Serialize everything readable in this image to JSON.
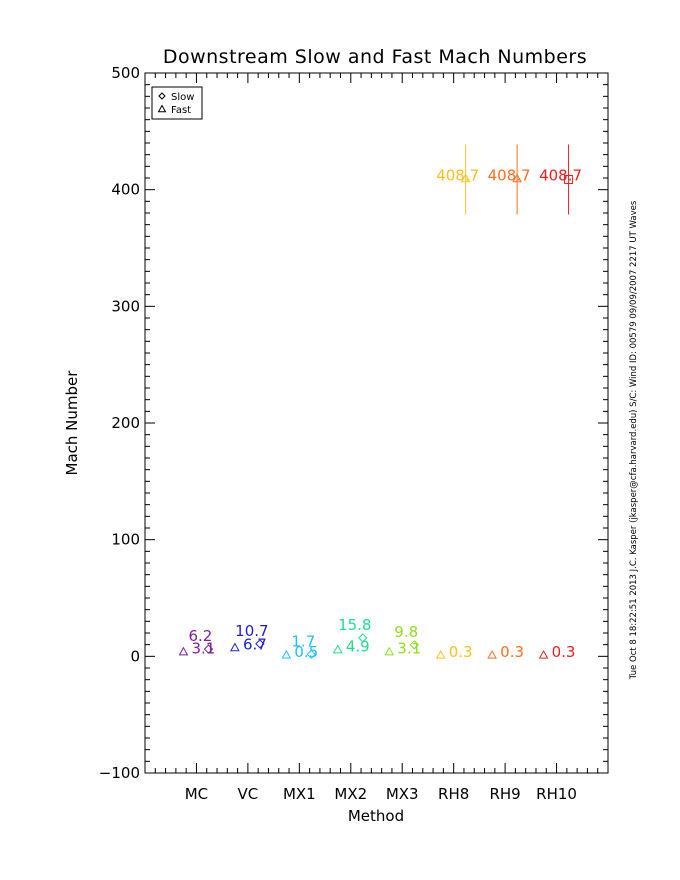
{
  "chart_data": {
    "type": "scatter",
    "title": "Downstream Slow and Fast Mach Numbers",
    "xlabel": "Method",
    "ylabel": "Mach Number",
    "categories": [
      "MC",
      "VC",
      "MX1",
      "MX2",
      "MX3",
      "RH8",
      "RH9",
      "RH10"
    ],
    "ylim": [
      -100,
      500
    ],
    "yticks": [
      -100,
      0,
      100,
      200,
      300,
      400,
      500
    ],
    "legend": {
      "placement": "top-left",
      "entries": [
        {
          "label": "Slow",
          "marker": "diamond"
        },
        {
          "label": "Fast",
          "marker": "triangle"
        }
      ]
    },
    "series": [
      {
        "name": "Slow",
        "marker": "diamond",
        "values": [
          6.2,
          10.7,
          1.7,
          15.8,
          9.8,
          408.7,
          408.7,
          408.7
        ],
        "labels": [
          "6.2",
          "10.7",
          "1.7",
          "15.8",
          "9.8",
          "408.7",
          "408.7",
          "408.7"
        ],
        "error": [
          null,
          null,
          null,
          null,
          null,
          30,
          30,
          30
        ]
      },
      {
        "name": "Fast",
        "marker": "triangle",
        "values": [
          3.1,
          6.7,
          0.5,
          4.9,
          3.1,
          0.3,
          0.3,
          0.3
        ],
        "labels": [
          "3.1",
          "6.7",
          "0.5",
          "4.9",
          "3.1",
          "0.3",
          "0.3",
          "0.3"
        ]
      }
    ],
    "category_colors": [
      "#7f1f9f",
      "#1f1fcf",
      "#1fbfff",
      "#1fdf8f",
      "#8fdf1f",
      "#ffbf1f",
      "#ff6f1f",
      "#ef1f1f"
    ],
    "side_annotation": "Tue Oct  8 18:22:51 2013   J.C. Kasper (jkasper@cfa.harvard.edu)   S/C: Wind  ID: 00579  09/09/2007   2217 UT Waves"
  }
}
